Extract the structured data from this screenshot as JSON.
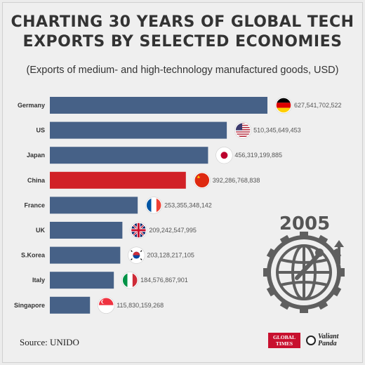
{
  "header": {
    "title_line1": "CHARTING 30 YEARS OF GLOBAL TECH",
    "title_line2": "EXPORTS BY SELECTED ECONOMIES",
    "subtitle": "(Exports of medium- and high-technology manufactured goods, USD)"
  },
  "footer": {
    "source": "Source: UNIDO",
    "logo_global_times_line1": "GLOBAL",
    "logo_global_times_line2": "TIMES",
    "logo_valiant_panda_line1": "Valiant",
    "logo_valiant_panda_line2": "Panda"
  },
  "year_label": "2005",
  "colors": {
    "bar": "#466187",
    "highlight": "#d12127",
    "background": "#efefef"
  },
  "chart_data": {
    "type": "bar",
    "orientation": "horizontal",
    "categories": [
      "Germany",
      "US",
      "Japan",
      "China",
      "France",
      "UK",
      "S.Korea",
      "Italy",
      "Singapore"
    ],
    "values": [
      627541702522,
      510345649453,
      456319199885,
      392286768838,
      253355348142,
      209242547995,
      203128217105,
      184576867901,
      115830159268
    ],
    "value_labels": [
      "627,541,702,522",
      "510,345,649,453",
      "456,319,199,885",
      "392,286,768,838",
      "253,355,348,142",
      "209,242,547,995",
      "203,128,217,105",
      "184,576,867,901",
      "115,830,159,268"
    ],
    "flags": [
      "germany-flag-icon",
      "us-flag-icon",
      "japan-flag-icon",
      "china-flag-icon",
      "france-flag-icon",
      "uk-flag-icon",
      "south-korea-flag-icon",
      "italy-flag-icon",
      "singapore-flag-icon"
    ],
    "highlighted_category": "China",
    "xlim": [
      0,
      627541702522
    ],
    "grid": false
  }
}
